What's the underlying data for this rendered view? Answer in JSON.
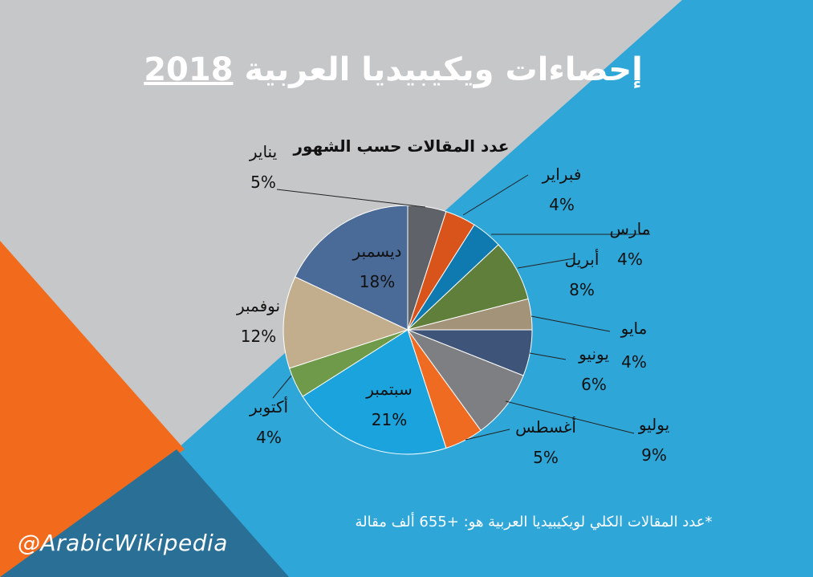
{
  "title": {
    "text": "إحصاءات ويكيبيديا العربية",
    "year": "2018"
  },
  "colors": {
    "background_blue": "#2fa6d8",
    "gray_panel": "#c6c7c8",
    "orange_panel": "#f26b1d",
    "deep_blue_panel": "#2a6f96"
  },
  "footnote": "*عدد المقالات الكلي لويكيبيديا العربية هو: +655 ألف مقالة",
  "handle": "@ArabicWikipedia",
  "chart_data": {
    "type": "pie",
    "title": "عدد المقالات حسب الشهور",
    "slices": [
      {
        "label": "يناير",
        "value": 5,
        "display": "5%",
        "color": "#5f6369"
      },
      {
        "label": "فبراير",
        "value": 4,
        "display": "4%",
        "color": "#d9541b"
      },
      {
        "label": "مارس",
        "value": 4,
        "display": "4%",
        "color": "#0e7ab0"
      },
      {
        "label": "أبريل",
        "value": 8,
        "display": "8%",
        "color": "#5f7f3b"
      },
      {
        "label": "مايو",
        "value": 4,
        "display": "4%",
        "color": "#a39379"
      },
      {
        "label": "يونيو",
        "value": 6,
        "display": "6%",
        "color": "#3e5579"
      },
      {
        "label": "يوليو",
        "value": 9,
        "display": "9%",
        "color": "#7e7f83"
      },
      {
        "label": "أغسطس",
        "value": 5,
        "display": "5%",
        "color": "#ef6b21"
      },
      {
        "label": "سبتمبر",
        "value": 21,
        "display": "21%",
        "color": "#1aa3dc"
      },
      {
        "label": "أكتوبر",
        "value": 4,
        "display": "4%",
        "color": "#6f9a4a"
      },
      {
        "label": "نوفمبر",
        "value": 12,
        "display": "12%",
        "color": "#c2ae8c"
      },
      {
        "label": "ديسمبر",
        "value": 18,
        "display": "18%",
        "color": "#4a6a98"
      }
    ]
  }
}
